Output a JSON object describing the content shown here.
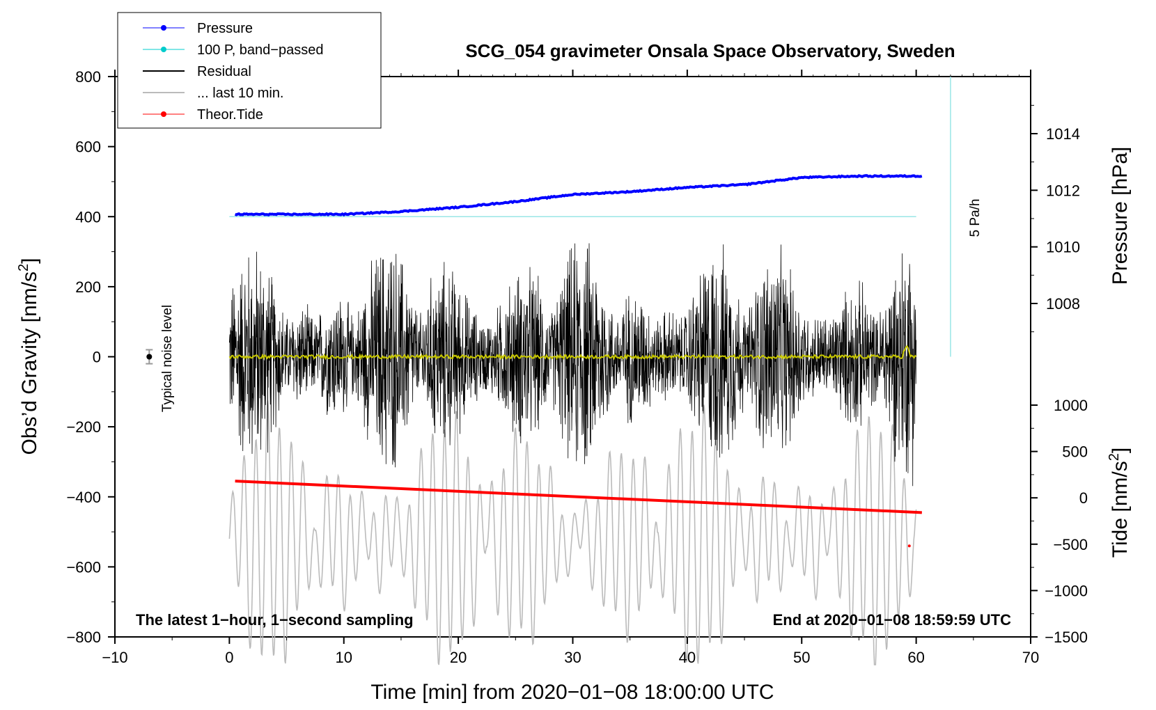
{
  "chart_data": {
    "type": "line",
    "title": "SCG_054 gravimeter Onsala Space Observatory, Sweden",
    "xlabel": "Time [min] from 2020−01−08 18:00:00 UTC",
    "ylabel_left": "Obs’d Gravity [nm/s",
    "ylabel_left_sup": "2",
    "ylabel_left_end": "]",
    "ylabel_right_top": "Pressure [hPa]",
    "ylabel_right_bottom": "Tide [nm/s",
    "ylabel_right_bottom_sup": "2",
    "ylabel_right_bottom_end": "]",
    "xlim": [
      -10,
      70
    ],
    "ylim": [
      -800,
      800
    ],
    "pressure_lim": [
      1004,
      1016
    ],
    "tide_lim": [
      -1500,
      1500
    ],
    "x_ticks": [
      -10,
      0,
      10,
      20,
      30,
      40,
      50,
      60,
      70
    ],
    "x_tick_labels": [
      "−10",
      "0",
      "10",
      "20",
      "30",
      "40",
      "50",
      "60",
      "70"
    ],
    "y_ticks": [
      -800,
      -600,
      -400,
      -200,
      0,
      200,
      400,
      600,
      800
    ],
    "y_tick_labels": [
      "−800",
      "−600",
      "−400",
      "−200",
      "0",
      "200",
      "400",
      "600",
      "800"
    ],
    "pressure_ticks": [
      1008,
      1010,
      1012,
      1014
    ],
    "pressure_tick_labels": [
      "1008",
      "1010",
      "1012",
      "1014"
    ],
    "tide_ticks": [
      -1500,
      -1000,
      -500,
      0,
      500,
      1000
    ],
    "tide_tick_labels": [
      "−1500",
      "−1000",
      "−500",
      "0",
      "500",
      "1000"
    ],
    "legend": [
      {
        "label": "Pressure",
        "color": "#0000ff",
        "marker": true
      },
      {
        "label": "100 P, band−passed",
        "color": "#00cccc",
        "marker": true
      },
      {
        "label": "Residual",
        "color": "#000000",
        "marker": false
      },
      {
        "label": "... last 10 min.",
        "color": "#bbbbbb",
        "marker": false
      },
      {
        "label": "Theor.Tide",
        "color": "#ff0000",
        "marker": true
      }
    ],
    "series": [
      {
        "name": "Pressure",
        "axis": "pressure",
        "color": "#0000ff",
        "x": [
          0.5,
          5,
          10,
          15,
          20,
          25,
          30,
          35,
          40,
          45,
          50,
          55,
          60.5
        ],
        "values": [
          1011.15,
          1011.15,
          1011.15,
          1011.25,
          1011.4,
          1011.6,
          1011.85,
          1011.95,
          1012.1,
          1012.2,
          1012.45,
          1012.5,
          1012.5
        ]
      },
      {
        "name": "100 P, band-passed",
        "axis": "gravity",
        "color": "#99e6e6",
        "x": [
          0,
          60
        ],
        "values": [
          400,
          400
        ]
      },
      {
        "name": "Theor.Tide",
        "axis": "gravity",
        "color": "#ff0000",
        "x": [
          0.5,
          60.5
        ],
        "values": [
          -355,
          -445
        ]
      },
      {
        "name": "Residual envelope",
        "axis": "gravity",
        "color": "#000000",
        "x_range": [
          0,
          60
        ],
        "amplitude": [
          120,
          390
        ]
      },
      {
        "name": "last 10 min.",
        "axis": "gravity",
        "color": "#bbbbbb",
        "x_range": [
          0,
          60
        ],
        "center": -520,
        "amplitude": [
          60,
          360
        ]
      },
      {
        "name": "Residual smoothed",
        "axis": "gravity",
        "color": "#c8c800",
        "x_range": [
          0,
          60
        ],
        "center": 0
      }
    ],
    "noise": {
      "label": "Typical noise level",
      "x": -7,
      "y": 0,
      "err": 20
    },
    "rate_marker": {
      "label": "5 Pa/h",
      "x": 63,
      "y_from": 0,
      "y_to": 800,
      "color": "#99e6e6"
    },
    "notes": {
      "left": "The latest 1−hour, 1−second sampling",
      "right": "End at 2020−01−08 18:59:59 UTC"
    }
  }
}
